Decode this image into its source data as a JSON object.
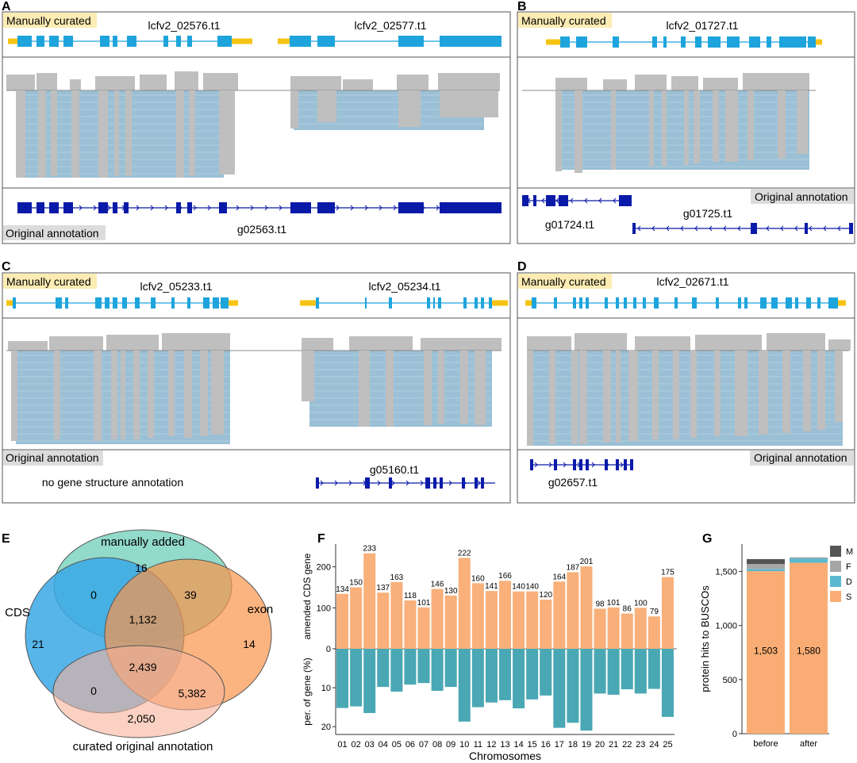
{
  "colors": {
    "gene_exon": "#1ea4dc",
    "gene_utr": "#f6c414",
    "orig_annot": "#0a1aa8",
    "read_gray": "#bfbfbf",
    "read_blue": "#9bc0d6",
    "label_yellow": "#fcecb4",
    "label_gray": "#dcdcdc",
    "bar_orange": "#f9b07a",
    "bar_teal": "#4aa7b4",
    "venn_cds": "#3aa8e6",
    "venn_manual": "#7fd3bf",
    "venn_exon": "#f9944a",
    "venn_curated": "#f7b39a",
    "busco_M": "#555555",
    "busco_F": "#a6a6a6",
    "busco_D": "#5bb8cf",
    "busco_S": "#f9ad74"
  },
  "panelA": {
    "letter": "A",
    "curated_label": "Manually curated",
    "gene1": "lcfv2_02576.t1",
    "gene2": "lcfv2_02577.t1",
    "orig_label": "Original annotation",
    "orig_gene": "g02563.t1"
  },
  "panelB": {
    "letter": "B",
    "curated_label": "Manually curated",
    "gene1": "lcfv2_01727.t1",
    "orig_label": "Original annotation",
    "orig_gene1": "g01724.t1",
    "orig_gene2": "g01725.t1"
  },
  "panelC": {
    "letter": "C",
    "curated_label": "Manually curated",
    "gene1": "lcfv2_05233.t1",
    "gene2": "lcfv2_05234.t1",
    "orig_label": "Original annotation",
    "no_annot": "no gene structure annotation",
    "orig_gene": "g05160.t1"
  },
  "panelD": {
    "letter": "D",
    "curated_label": "Manually curated",
    "gene1": "lcfv2_02671.t1",
    "orig_label": "Original annotation",
    "orig_gene": "g02657.t1"
  },
  "panelE": {
    "letter": "E",
    "set_manual": "manually added",
    "set_cds": "CDS",
    "set_exon": "exon",
    "set_curated": "curated original annotation",
    "counts": {
      "manual_only": "16",
      "cds_manual": "0",
      "manual_exon": "39",
      "cds_manual_exon": "1,132",
      "cds_only": "21",
      "exon_only": "14",
      "cds_exon_curated": "2,439",
      "cds_curated": "0",
      "exon_curated": "5,382",
      "curated_only": "2,050"
    }
  },
  "panelF": {
    "letter": "F"
  },
  "panelG": {
    "letter": "G"
  },
  "chart_data": [
    {
      "type": "bar",
      "title": "",
      "categories": [
        "01",
        "02",
        "03",
        "04",
        "05",
        "06",
        "07",
        "08",
        "09",
        "10",
        "11",
        "12",
        "13",
        "14",
        "15",
        "16",
        "17",
        "18",
        "19",
        "20",
        "21",
        "22",
        "23",
        "24",
        "25"
      ],
      "series": [
        {
          "name": "amended CDS gene",
          "values": [
            134,
            150,
            233,
            137,
            163,
            118,
            101,
            146,
            130,
            222,
            160,
            141,
            166,
            140,
            140,
            120,
            164,
            187,
            201,
            98,
            101,
            86,
            100,
            79,
            175
          ]
        },
        {
          "name": "per. of gene (%)",
          "values": [
            15.2,
            14.8,
            16.5,
            9.8,
            11.0,
            9.2,
            8.8,
            10.8,
            9.8,
            18.7,
            15.0,
            13.8,
            13.2,
            15.3,
            13.0,
            12.0,
            20.3,
            19.0,
            21.0,
            11.5,
            11.8,
            10.4,
            11.5,
            10.3,
            17.5
          ]
        }
      ],
      "xlabel": "Chromosomes",
      "ylabel_top": "amended CDS gene",
      "ylabel_bottom": "per. of gene (%)",
      "ylim_top": [
        0,
        240
      ],
      "ylim_bottom": [
        0,
        22
      ],
      "yticks_top": [
        "0",
        "100",
        "200"
      ],
      "yticks_bottom": [
        "10",
        "20"
      ]
    },
    {
      "type": "bar",
      "title": "",
      "categories": [
        "before",
        "after"
      ],
      "series": [
        {
          "name": "S",
          "values": [
            1503,
            1580
          ]
        },
        {
          "name": "D",
          "values": [
            20,
            40
          ]
        },
        {
          "name": "F",
          "values": [
            45,
            6
          ]
        },
        {
          "name": "M",
          "values": [
            46,
            3
          ]
        }
      ],
      "labels": [
        "1,503",
        "1,580"
      ],
      "xlabel": "",
      "ylabel": "protein hits to BUSCOs",
      "ylim": [
        0,
        1650
      ],
      "yticks": [
        "0",
        "500",
        "1,000",
        "1,500"
      ],
      "legend": [
        "M",
        "F",
        "D",
        "S"
      ]
    }
  ]
}
